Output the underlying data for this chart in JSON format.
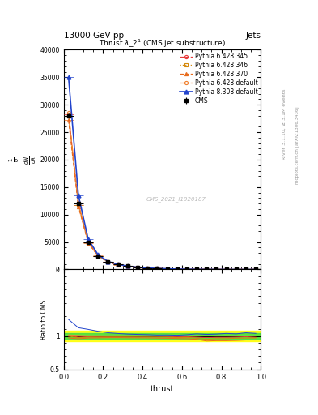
{
  "title_top": "13000 GeV pp",
  "title_top_right": "Jets",
  "plot_title": "Thrust $\\lambda\\_2^1$ (CMS jet substructure)",
  "xlabel": "thrust",
  "ylabel_ratio": "Ratio to CMS",
  "watermark": "CMS_2021_I1920187",
  "right_label": "Rivet 3.1.10, ≥ 3.1M events",
  "right_label2": "mcplots.cern.ch [arXiv:1306.3436]",
  "x_data": [
    0.025,
    0.075,
    0.125,
    0.175,
    0.225,
    0.275,
    0.325,
    0.375,
    0.425,
    0.475,
    0.525,
    0.575,
    0.625,
    0.675,
    0.725,
    0.775,
    0.825,
    0.875,
    0.925,
    0.975
  ],
  "cms_y": [
    28000,
    12000,
    5000,
    2500,
    1400,
    900,
    600,
    400,
    280,
    190,
    120,
    80,
    50,
    30,
    20,
    10,
    5,
    3,
    1,
    0.5
  ],
  "cms_xerr": [
    0.025,
    0.025,
    0.025,
    0.025,
    0.025,
    0.025,
    0.025,
    0.025,
    0.025,
    0.025,
    0.025,
    0.025,
    0.025,
    0.025,
    0.025,
    0.025,
    0.025,
    0.025,
    0.025,
    0.025
  ],
  "cms_yerr": [
    400,
    200,
    100,
    60,
    35,
    22,
    15,
    10,
    7,
    5,
    4,
    3,
    2,
    1.5,
    1,
    0.7,
    0.4,
    0.2,
    0.15,
    0.1
  ],
  "py6_345_y": [
    28200,
    11800,
    4950,
    2480,
    1390,
    895,
    598,
    398,
    279,
    189,
    119,
    79,
    49.5,
    29.5,
    19.5,
    9.8,
    4.9,
    2.95,
    0.99,
    0.49
  ],
  "py6_346_y": [
    27900,
    11700,
    4920,
    2460,
    1380,
    888,
    592,
    394,
    276,
    187,
    118,
    78,
    49,
    29,
    19,
    9.6,
    4.8,
    2.9,
    0.97,
    0.485
  ],
  "py6_370_y": [
    27200,
    11500,
    4850,
    2430,
    1365,
    878,
    584,
    389,
    272,
    184,
    116,
    77,
    48,
    28.5,
    18.5,
    9.3,
    4.65,
    2.8,
    0.94,
    0.47
  ],
  "py6_def_y": [
    28500,
    12100,
    5020,
    2510,
    1405,
    903,
    602,
    401,
    281,
    190,
    120,
    80,
    50,
    30,
    20,
    10,
    5,
    3,
    1,
    0.5
  ],
  "py8_def_y": [
    35000,
    13500,
    5500,
    2680,
    1470,
    935,
    618,
    410,
    286,
    193,
    122,
    81,
    51,
    31,
    20.5,
    10.3,
    5.2,
    3.1,
    1.05,
    0.52
  ],
  "xlim": [
    0,
    1.0
  ],
  "ylim_main": [
    0,
    40000
  ],
  "ylim_ratio": [
    0.5,
    2.0
  ],
  "yticks_main": [
    0,
    5000,
    10000,
    15000,
    20000,
    25000,
    30000,
    35000,
    40000
  ],
  "ytick_labels_main": [
    "0",
    "5000",
    "10000",
    "15000",
    "20000",
    "25000",
    "30000",
    "35000",
    "40000"
  ],
  "yticks_ratio": [
    0.5,
    1.0,
    2.0
  ],
  "colors": {
    "cms": "#000000",
    "py6_345": "#e8393a",
    "py6_346": "#d4880a",
    "py6_370": "#e86a1a",
    "py6_def": "#f08030",
    "py8_def": "#2244cc"
  },
  "green_band_halfwidth": 0.04,
  "yellow_band_halfwidth": 0.08
}
